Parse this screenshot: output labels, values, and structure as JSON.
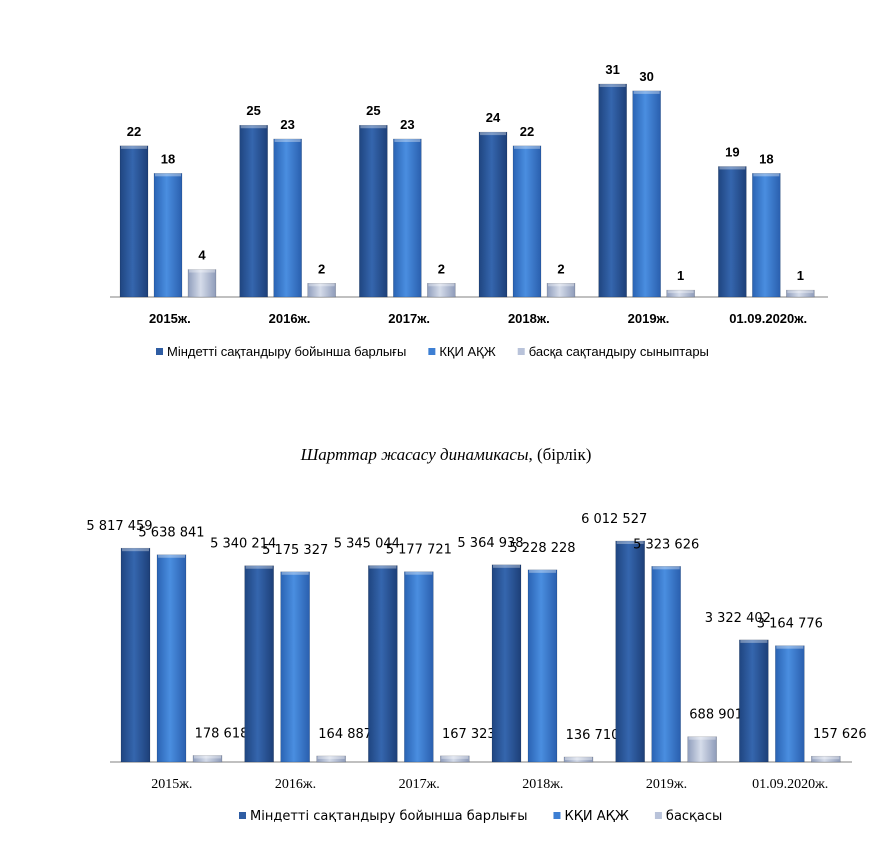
{
  "colors": {
    "series1": "#2f5da3",
    "series2": "#3d7fd3",
    "series3": "#b9c3da",
    "axis": "#808080"
  },
  "chart_data": [
    {
      "type": "bar",
      "categories": [
        "2015ж.",
        "2016ж.",
        "2017ж.",
        "2018ж.",
        "2019ж.",
        "01.09.2020ж."
      ],
      "series": [
        {
          "name": "Міндетті сақтандыру бойынша барлығы",
          "values": [
            22,
            25,
            25,
            24,
            31,
            19
          ]
        },
        {
          "name": "КҚИ АҚЖ",
          "values": [
            18,
            23,
            23,
            22,
            30,
            18
          ]
        },
        {
          "name": "басқа сақтандыру сыныптары",
          "values": [
            4,
            2,
            2,
            2,
            1,
            1
          ]
        }
      ],
      "value_labels": [
        [
          "22",
          "25",
          "25",
          "24",
          "31",
          "19"
        ],
        [
          "18",
          "23",
          "23",
          "22",
          "30",
          "18"
        ],
        [
          "4",
          "2",
          "2",
          "2",
          "1",
          "1"
        ]
      ],
      "ylim": [
        0,
        31
      ],
      "legend_position": "bottom"
    },
    {
      "type": "bar",
      "title_italic": "Шарттар жасасу динамикасы",
      "title_rest": ", (бірлік)",
      "categories": [
        "2015ж.",
        "2016ж.",
        "2017ж.",
        "2018ж.",
        "2019ж.",
        "01.09.2020ж."
      ],
      "series": [
        {
          "name": "Міндетті сақтандыру бойынша барлығы",
          "values": [
            5817459,
            5340214,
            5345044,
            5364938,
            6012527,
            3322402
          ]
        },
        {
          "name": "КҚИ АҚЖ",
          "values": [
            5638841,
            5175327,
            5177721,
            5228228,
            5323626,
            3164776
          ]
        },
        {
          "name": "басқасы",
          "values": [
            178618,
            164887,
            167323,
            136710,
            688901,
            157626
          ]
        }
      ],
      "value_labels": [
        [
          "5 817 459",
          "5 340 214",
          "5 345 044",
          "5 364 938",
          "6 012 527",
          "3 322 402"
        ],
        [
          "5 638 841",
          "5 175 327",
          "5 177 721",
          "5 228 228",
          "5 323 626",
          "3 164 776"
        ],
        [
          "178 618",
          "164 887",
          "167 323",
          "136 710",
          "688 901",
          "157 626"
        ]
      ],
      "ylim": [
        0,
        6012527
      ],
      "legend_position": "bottom"
    }
  ]
}
